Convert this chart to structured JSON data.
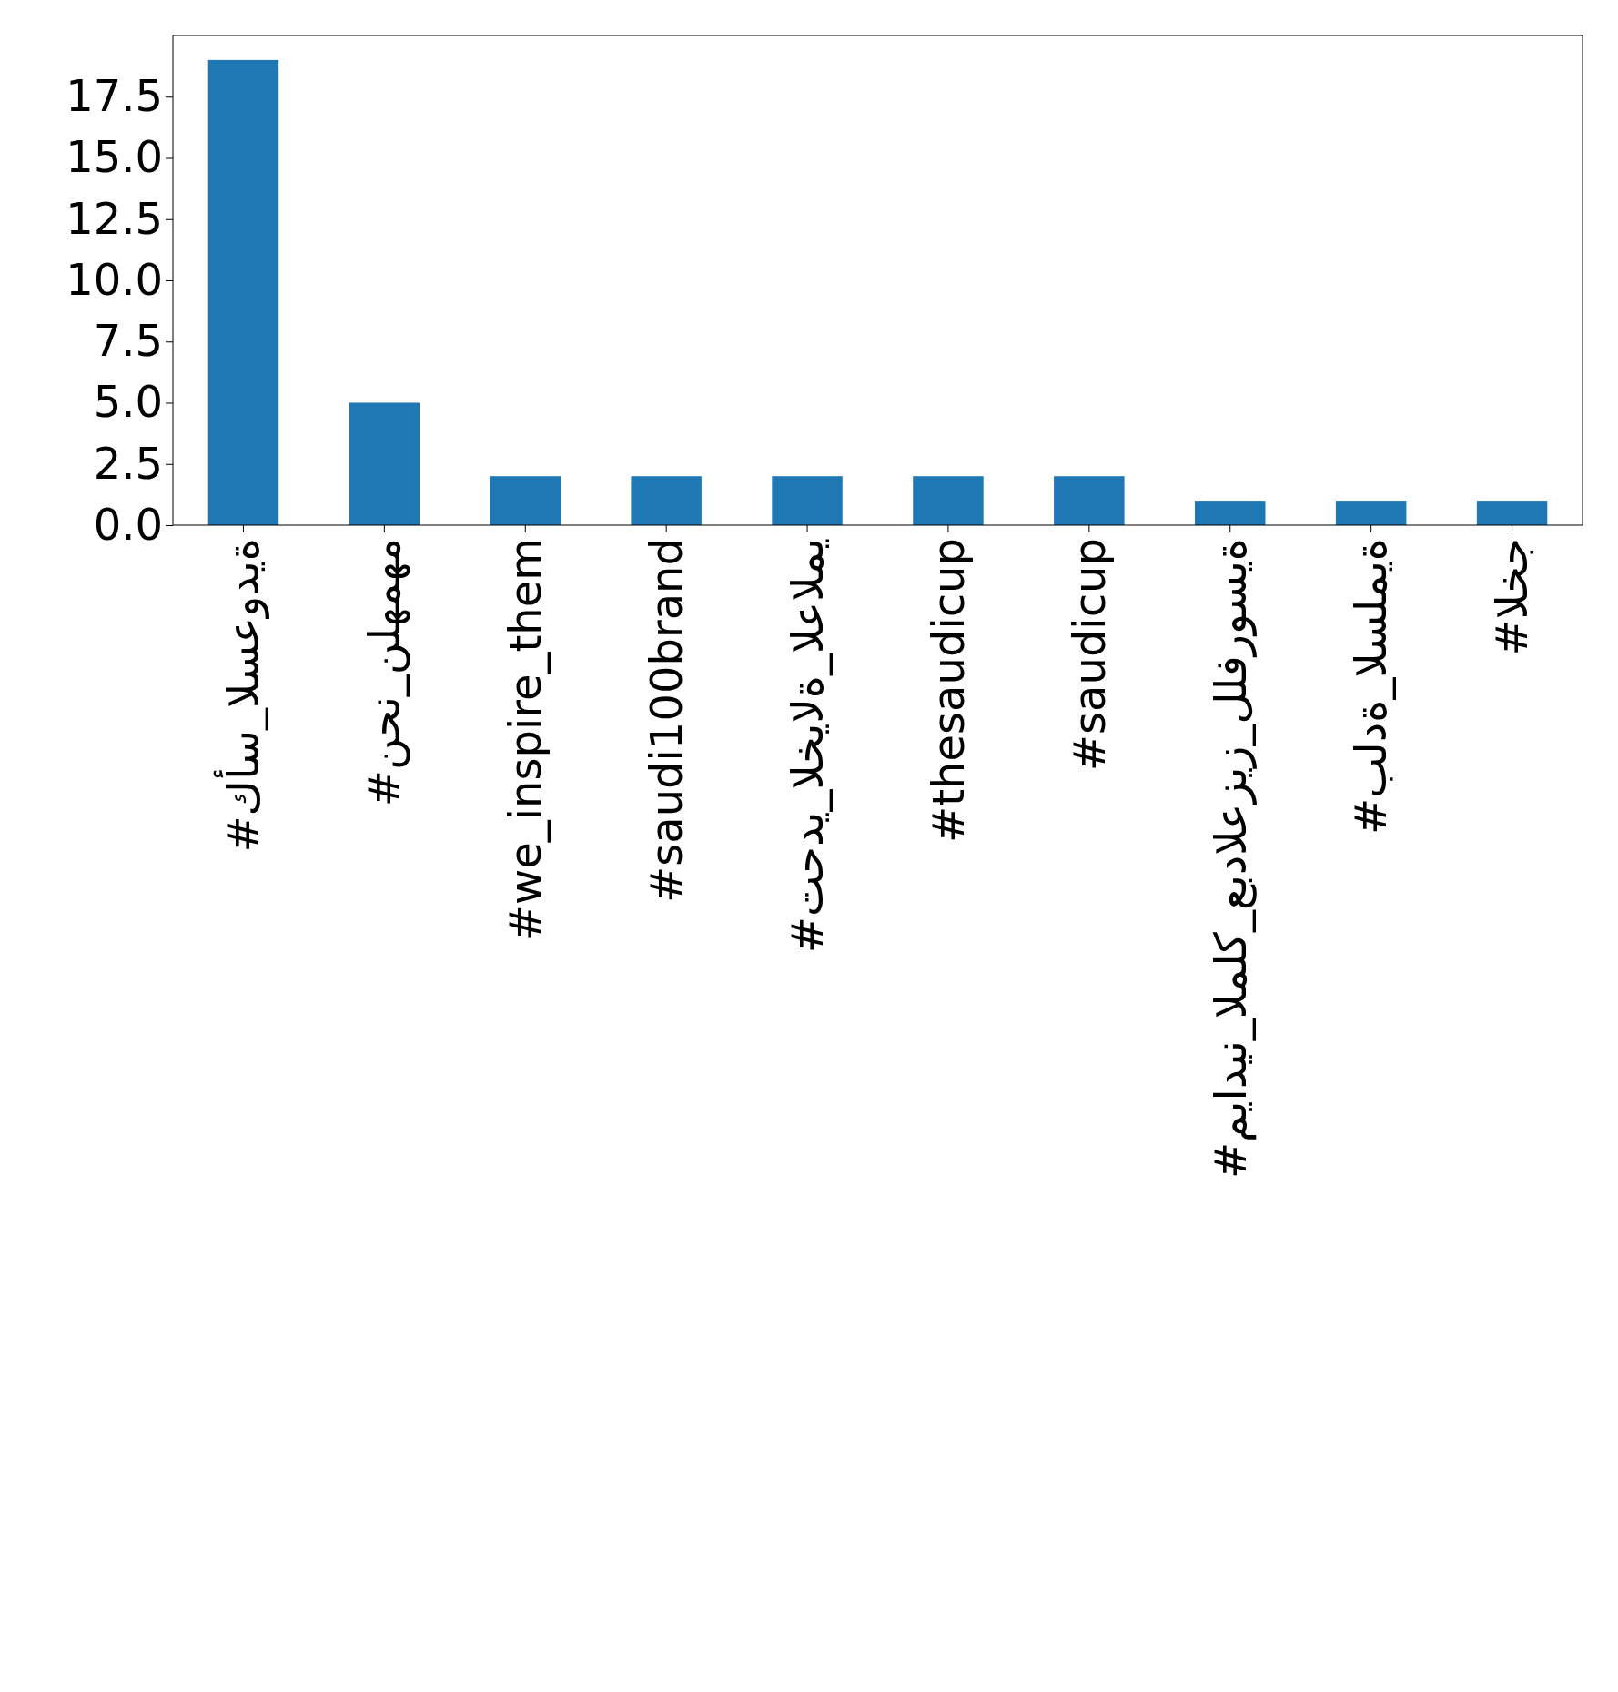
{
  "chart_data": {
    "type": "bar",
    "categories": [
      "#كأس_السعودية",
      "#نحن_نلهمهم",
      "#we_inspire_them",
      "#saudi100brand",
      "#تحدي_الخيالة_العالمي",
      "#thesaudicup",
      "#saudicup",
      "#ميادين_الملك_عبدالعزيز_للفروسية",
      "#بلدة_السلمية",
      "#الخج"
    ],
    "values": [
      19,
      5,
      2,
      2,
      2,
      2,
      2,
      1,
      1,
      1
    ],
    "color": "#1f77b4",
    "ylim": [
      0,
      20
    ],
    "yticks": [
      {
        "value": 0,
        "label": "0.0"
      },
      {
        "value": 2.5,
        "label": "2.5"
      },
      {
        "value": 5,
        "label": "5.0"
      },
      {
        "value": 7.5,
        "label": "7.5"
      },
      {
        "value": 10,
        "label": "10.0"
      },
      {
        "value": 12.5,
        "label": "12.5"
      },
      {
        "value": 15,
        "label": "15.0"
      },
      {
        "value": 17.5,
        "label": "17.5"
      }
    ]
  }
}
